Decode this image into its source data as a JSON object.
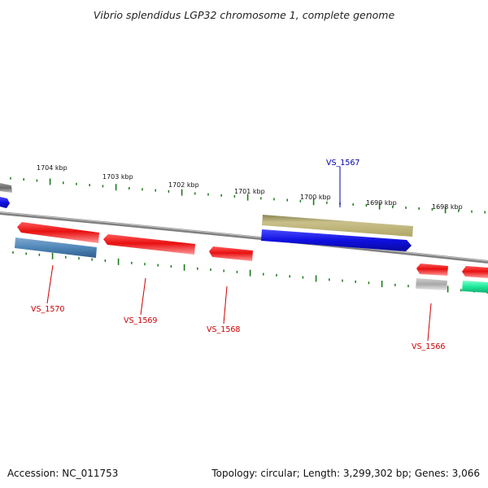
{
  "title": "Vibrio splendidus LGP32 chromosome 1, complete genome",
  "footer": {
    "accession": "Accession: NC_011753",
    "summary": "Topology: circular; Length: 3,299,302 bp; Genes: 3,066"
  },
  "kbp_labels": [
    "1704 kbp",
    "1703 kbp",
    "1702 kbp",
    "1701 kbp",
    "1700 kbp",
    "1699 kbp",
    "1698 kbp"
  ],
  "gene_labels": {
    "vs1567": "VS_1567",
    "vs1570": "VS_1570",
    "vs1569": "VS_1569",
    "vs1568": "VS_1568",
    "vs1566": "VS_1566"
  },
  "colors": {
    "backbone": "#808080",
    "forward_gene": "#1010e0",
    "reverse_gene": "#e81010",
    "olive_feature": "#bdb270",
    "steel_feature": "#4f86b8",
    "grey_feature": "#a8a8a8",
    "teal_feature": "#1ee89a",
    "tick": "#1a7a1a",
    "label_blue": "#0000aa",
    "label_red": "#cc0000"
  }
}
